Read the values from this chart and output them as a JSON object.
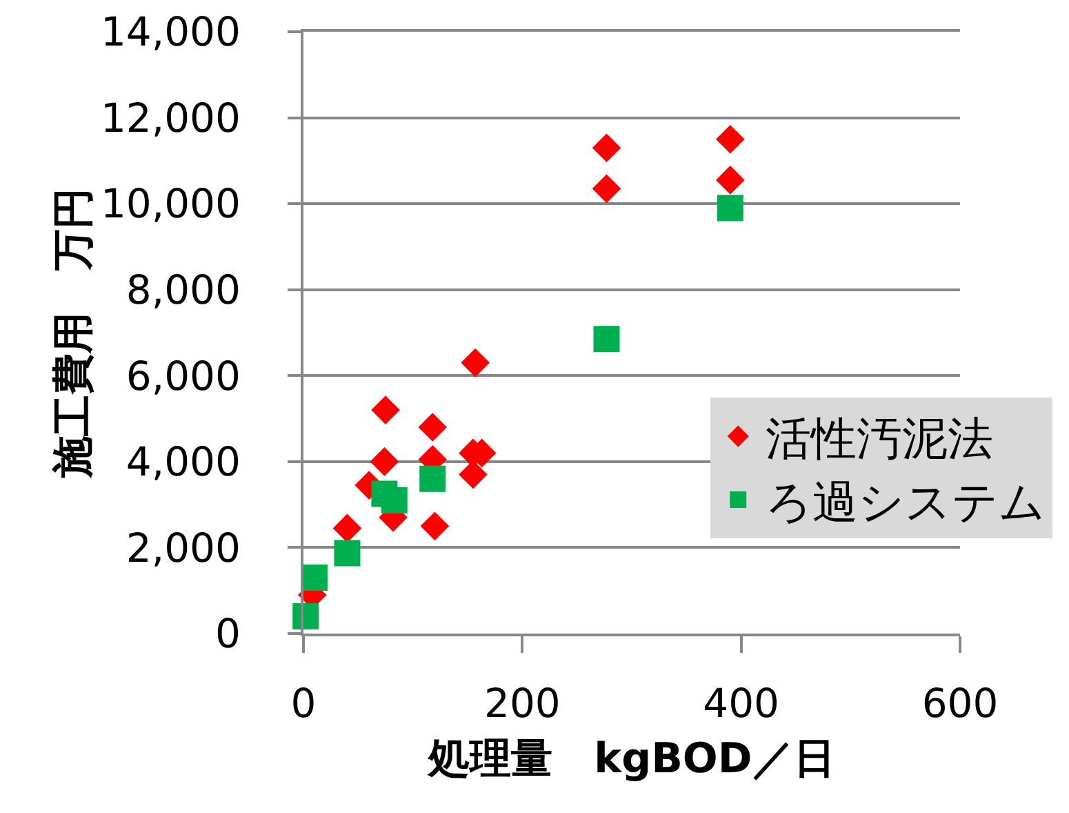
{
  "chart_data": {
    "type": "scatter",
    "xlabel": "処理量　kgBOD／日",
    "ylabel": "施工費用　万円",
    "xlim": [
      0,
      600
    ],
    "xticks": [
      0,
      200,
      400,
      600
    ],
    "ylim": [
      0,
      14000
    ],
    "yticks": [
      {
        "value": 0,
        "label": "0"
      },
      {
        "value": 2000,
        "label": "2,000"
      },
      {
        "value": 4000,
        "label": "4,000"
      },
      {
        "value": 6000,
        "label": "6,000"
      },
      {
        "value": 8000,
        "label": "8,000"
      },
      {
        "value": 10000,
        "label": "10,000"
      },
      {
        "value": 12000,
        "label": "12,000"
      },
      {
        "value": 14000,
        "label": "14,000"
      }
    ],
    "grid": "y",
    "legend": "right",
    "series": [
      {
        "name": "活性汚泥法",
        "color": "#ff0000",
        "marker": "diamond",
        "x": [
          8,
          40,
          60,
          74,
          75,
          82,
          118,
          118,
          120,
          155,
          163,
          155,
          157,
          277,
          277,
          390,
          390
        ],
        "values": [
          900,
          2450,
          3450,
          4000,
          5200,
          2700,
          4800,
          4050,
          2500,
          4200,
          4200,
          3700,
          6300,
          11300,
          10350,
          11500,
          10550
        ]
      },
      {
        "name": "ろ過システム",
        "color": "#00b050",
        "marker": "square",
        "x": [
          2,
          10,
          40,
          74,
          83,
          118,
          277,
          390
        ],
        "values": [
          400,
          1300,
          1870,
          3250,
          3100,
          3600,
          6850,
          9900
        ]
      }
    ]
  }
}
